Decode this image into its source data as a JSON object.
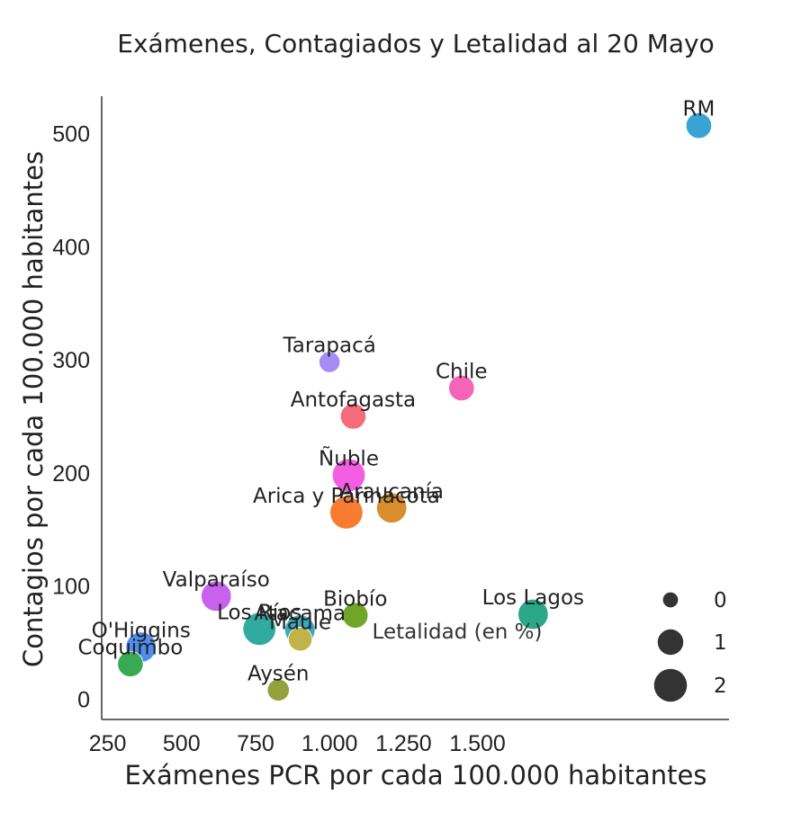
{
  "chart_data": {
    "type": "scatter",
    "title": "Exámenes, Contagiados y Letalidad al 20 Mayo",
    "xlabel": "Exámenes PCR por cada 100.000 habitantes",
    "ylabel": "Contagios por cada 100.000 habitantes",
    "xlim": [
      230,
      2350
    ],
    "ylim": [
      -18,
      533
    ],
    "x_ticks": [
      {
        "value": 250,
        "label": "250"
      },
      {
        "value": 500,
        "label": "500"
      },
      {
        "value": 750,
        "label": "750"
      },
      {
        "value": 1000,
        "label": "1.000"
      },
      {
        "value": 1250,
        "label": "1.250"
      },
      {
        "value": 1500,
        "label": "1.500"
      }
    ],
    "y_ticks": [
      {
        "value": 0,
        "label": "0"
      },
      {
        "value": 100,
        "label": "100"
      },
      {
        "value": 200,
        "label": "200"
      },
      {
        "value": 300,
        "label": "300"
      },
      {
        "value": 400,
        "label": "400"
      },
      {
        "value": 500,
        "label": "500"
      }
    ],
    "size_legend": {
      "title": "Letalidad (en %)",
      "position": "bottom-right",
      "entries": [
        {
          "value": 0,
          "label": "0"
        },
        {
          "value": 1,
          "label": "1"
        },
        {
          "value": 2,
          "label": "2"
        }
      ]
    },
    "grid": false,
    "points": [
      {
        "name": "RM",
        "x": 2248,
        "y": 507,
        "letalidad": 1.0,
        "color": "#3aa3d3"
      },
      {
        "name": "Tarapacá",
        "x": 1000,
        "y": 298,
        "letalidad": 0.5,
        "color": "#a58cf5"
      },
      {
        "name": "Chile",
        "x": 1446,
        "y": 275,
        "letalidad": 1.0,
        "color": "#f565b7"
      },
      {
        "name": "Antofagasta",
        "x": 1080,
        "y": 250,
        "letalidad": 1.0,
        "color": "#f56c7a"
      },
      {
        "name": "Ñuble",
        "x": 1065,
        "y": 198,
        "letalidad": 2.0,
        "color": "#f45ee2"
      },
      {
        "name": "Araucanía",
        "x": 1210,
        "y": 169,
        "letalidad": 1.6,
        "color": "#d98e2e"
      },
      {
        "name": "Arica y Parinacota",
        "x": 1057,
        "y": 165,
        "letalidad": 2.0,
        "color": "#f77c2f"
      },
      {
        "name": "Valparaíso",
        "x": 617,
        "y": 91,
        "letalidad": 1.6,
        "color": "#c861ec"
      },
      {
        "name": "Biobío",
        "x": 1087,
        "y": 74,
        "letalidad": 1.0,
        "color": "#6fa62a"
      },
      {
        "name": "Los Lagos",
        "x": 1688,
        "y": 75,
        "letalidad": 1.6,
        "color": "#2ba888"
      },
      {
        "name": "Los Ríos",
        "x": 763,
        "y": 62,
        "letalidad": 2.0,
        "color": "#31aba0"
      },
      {
        "name": "Atacama",
        "x": 900,
        "y": 61,
        "letalidad": 1.6,
        "color": "#38a9c0"
      },
      {
        "name": "Maule",
        "x": 901,
        "y": 53,
        "letalidad": 0.8,
        "color": "#c2b24a"
      },
      {
        "name": "O'Higgins",
        "x": 363,
        "y": 46,
        "letalidad": 1.6,
        "color": "#4f8ef0"
      },
      {
        "name": "Coquimbo",
        "x": 327,
        "y": 31,
        "letalidad": 1.0,
        "color": "#3aaa52"
      },
      {
        "name": "Aysén",
        "x": 827,
        "y": 8,
        "letalidad": 0.6,
        "color": "#93a23a"
      }
    ]
  }
}
